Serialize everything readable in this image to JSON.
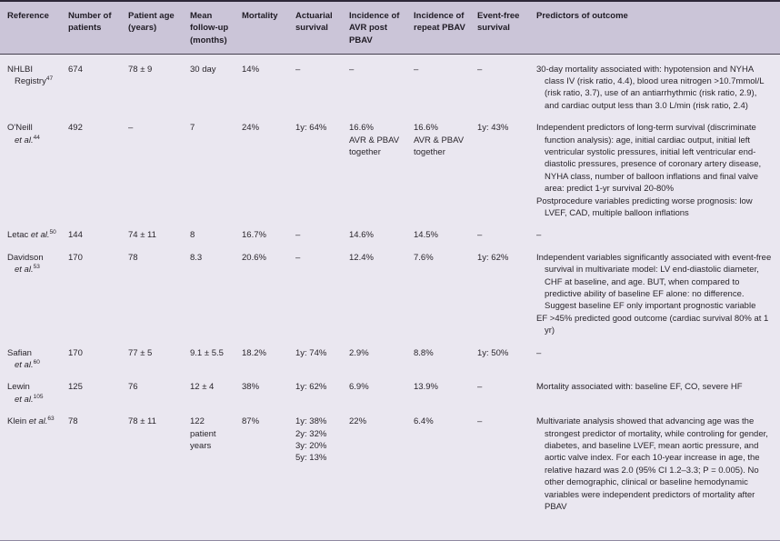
{
  "table": {
    "headers": [
      "Reference",
      "Number of patients",
      "Patient age (years)",
      "Mean follow-up (months)",
      "Mortality",
      "Actuarial survival",
      "Incidence of AVR post PBAV",
      "Incidence of repeat PBAV",
      "Event-free survival",
      "Predictors of outcome"
    ],
    "colors": {
      "header_bg": "#cbc5d8",
      "body_bg": "#eae7f0",
      "top_border": "#2d2838",
      "text": "#29252b"
    },
    "rows": [
      {
        "ref": {
          "name": "NHLBI",
          "suffix": "Registry",
          "suffix_italic": false,
          "suffix_on_new_line": true,
          "sup": "47"
        },
        "n_patients": "674",
        "age": "78 ± 9",
        "follow_up": "30 day",
        "mortality": "14%",
        "actuarial": "–",
        "avr": "–",
        "repeat_pbav": "–",
        "event_free": "–",
        "predictors": [
          "30-day mortality associated with: hypotension and NYHA class IV (risk ratio, 4.4), blood urea nitrogen >10.7mmol/L (risk ratio, 3.7), use of an antiarrhythmic (risk ratio, 2.9), and cardiac output less than 3.0 L/min (risk ratio, 2.4)"
        ]
      },
      {
        "ref": {
          "name": "O'Neill",
          "suffix": "et al.",
          "suffix_italic": true,
          "suffix_on_new_line": true,
          "sup": "44"
        },
        "n_patients": "492",
        "age": "–",
        "follow_up": "7",
        "mortality": "24%",
        "actuarial": "1y: 64%",
        "avr": "16.6%\nAVR & PBAV\ntogether",
        "repeat_pbav": "16.6%\nAVR & PBAV\ntogether",
        "event_free": "1y: 43%",
        "predictors": [
          "Independent predictors of long-term survival (discriminate function analysis): age, initial cardiac output, initial left ventricular systolic pressures, initial left ventricular end-diastolic pressures, presence of coronary artery disease, NYHA class, number of balloon inflations and final valve area: predict 1-yr survival 20-80%",
          "Postprocedure variables predicting worse prognosis: low LVEF, CAD, multiple balloon inflations"
        ]
      },
      {
        "ref": {
          "name": "Letac",
          "suffix": "et al.",
          "suffix_italic": true,
          "suffix_on_new_line": false,
          "sup": "50"
        },
        "n_patients": "144",
        "age": "74 ± 11",
        "follow_up": "8",
        "mortality": "16.7%",
        "actuarial": "–",
        "avr": "14.6%",
        "repeat_pbav": "14.5%",
        "event_free": "–",
        "predictors": [
          "–"
        ]
      },
      {
        "ref": {
          "name": "Davidson",
          "suffix": "et al.",
          "suffix_italic": true,
          "suffix_on_new_line": true,
          "sup": "53"
        },
        "n_patients": "170",
        "age": "78",
        "follow_up": "8.3",
        "mortality": "20.6%",
        "actuarial": "–",
        "avr": "12.4%",
        "repeat_pbav": "7.6%",
        "event_free": "1y: 62%",
        "predictors": [
          "Independent variables significantly associated with event-free survival in multivariate model: LV end-diastolic diameter, CHF at baseline, and age. BUT, when compared to predictive ability of baseline EF alone: no difference. Suggest baseline EF only important prognostic variable",
          "EF >45% predicted good outcome (cardiac survival 80% at 1 yr)"
        ]
      },
      {
        "ref": {
          "name": "Safian",
          "suffix": "et al.",
          "suffix_italic": true,
          "suffix_on_new_line": true,
          "sup": "60"
        },
        "n_patients": "170",
        "age": "77 ± 5",
        "follow_up": "9.1 ± 5.5",
        "mortality": "18.2%",
        "actuarial": "1y: 74%",
        "avr": "2.9%",
        "repeat_pbav": "8.8%",
        "event_free": "1y: 50%",
        "predictors": [
          "–"
        ]
      },
      {
        "ref": {
          "name": "Lewin",
          "suffix": "et al.",
          "suffix_italic": true,
          "suffix_on_new_line": true,
          "sup": "105"
        },
        "n_patients": "125",
        "age": "76",
        "follow_up": "12 ± 4",
        "mortality": "38%",
        "actuarial": "1y: 62%",
        "avr": "6.9%",
        "repeat_pbav": "13.9%",
        "event_free": "–",
        "predictors": [
          "Mortality associated with: baseline EF, CO, severe HF"
        ]
      },
      {
        "ref": {
          "name": "Klein",
          "suffix": "et al.",
          "suffix_italic": true,
          "suffix_on_new_line": false,
          "sup": "63"
        },
        "n_patients": "78",
        "age": "78 ± 11",
        "follow_up": "122\npatient\nyears",
        "mortality": "87%",
        "actuarial": "1y: 38%\n2y: 32%\n3y: 20%\n5y: 13%",
        "avr": "22%",
        "repeat_pbav": "6.4%",
        "event_free": "–",
        "predictors": [
          "Multivariate analysis showed that advancing age was the strongest predictor of mortality, while controling for gender, diabetes, and baseline LVEF, mean aortic pressure, and aortic valve index. For each 10-year increase in age, the relative hazard was 2.0 (95% CI 1.2–3.3; P = 0.005). No other demographic, clinical or baseline hemodynamic variables were independent predictors of mortality after PBAV"
        ]
      }
    ]
  }
}
